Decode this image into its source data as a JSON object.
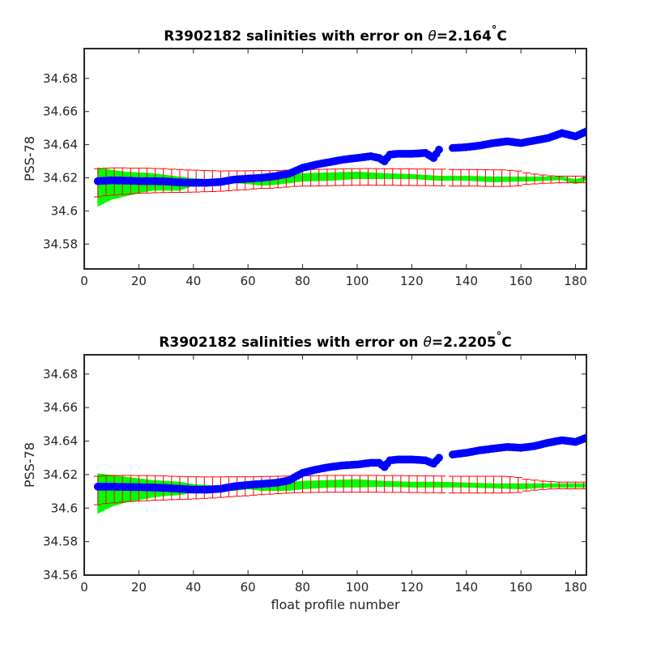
{
  "colors": {
    "measured": "#0000ff",
    "mapped_band": "#00ff00",
    "error_bars": "#ff0000",
    "axes": "#262626"
  },
  "chart_data": [
    {
      "type": "scatter",
      "title": "R3902182 salinities with error on θ=2.164°C",
      "title_parts": [
        "R3902182 salinities with error on ",
        "θ",
        "=2.164",
        "°",
        "C"
      ],
      "xlabel": "",
      "ylabel": "PSS-78",
      "xlim": [
        0,
        184
      ],
      "ylim": [
        34.565,
        34.698
      ],
      "xticks": [
        0,
        20,
        40,
        60,
        80,
        100,
        120,
        140,
        160,
        180
      ],
      "yticks": [
        34.58,
        34.6,
        34.62,
        34.64,
        34.66,
        34.68
      ],
      "ytick_labels": [
        "34.58",
        "34.6",
        "34.62",
        "34.64",
        "34.66",
        "34.68"
      ],
      "grid": false,
      "series": [
        {
          "kind": "measured-points",
          "x": [
            5,
            10,
            15,
            20,
            25,
            30,
            35,
            40,
            45,
            50,
            55,
            60,
            65,
            70,
            75,
            80,
            85,
            90,
            95,
            100,
            105,
            108,
            110,
            112,
            115,
            120,
            125,
            128,
            130,
            135,
            140,
            145,
            150,
            155,
            160,
            165,
            170,
            175,
            180,
            184
          ],
          "y": [
            34.618,
            34.6185,
            34.6183,
            34.618,
            34.618,
            34.6178,
            34.6172,
            34.617,
            34.617,
            34.6175,
            34.619,
            34.6195,
            34.62,
            34.621,
            34.6225,
            34.626,
            34.628,
            34.6295,
            34.631,
            34.632,
            34.633,
            34.632,
            34.63,
            34.634,
            34.6345,
            34.6345,
            34.635,
            34.632,
            34.637,
            34.638,
            34.6385,
            34.6395,
            34.641,
            34.642,
            34.641,
            34.6425,
            34.644,
            34.647,
            34.645,
            34.648
          ]
        },
        {
          "kind": "mapped-band",
          "x": [
            5,
            10,
            15,
            20,
            25,
            30,
            35,
            40,
            45,
            50,
            55,
            60,
            65,
            70,
            75,
            80,
            90,
            100,
            110,
            120,
            130,
            140,
            150,
            160,
            170,
            175,
            180,
            184
          ],
          "lower": [
            34.603,
            34.607,
            34.609,
            34.611,
            34.6125,
            34.6125,
            34.6125,
            34.6155,
            34.616,
            34.6165,
            34.617,
            34.6165,
            34.6155,
            34.616,
            34.617,
            34.618,
            34.6185,
            34.6195,
            34.6195,
            34.6195,
            34.6185,
            34.6185,
            34.6175,
            34.618,
            34.6185,
            34.619,
            34.6165,
            34.6185
          ],
          "upper": [
            34.626,
            34.6245,
            34.6235,
            34.623,
            34.6225,
            34.6215,
            34.6205,
            34.6195,
            34.619,
            34.6185,
            34.6195,
            34.62,
            34.621,
            34.6215,
            34.622,
            34.6225,
            34.623,
            34.6235,
            34.6225,
            34.622,
            34.621,
            34.621,
            34.6205,
            34.6205,
            34.6205,
            34.6205,
            34.619,
            34.6205
          ]
        },
        {
          "kind": "error-bars",
          "x": [
            5,
            8,
            11,
            14,
            17,
            20,
            23,
            26,
            29,
            32,
            35,
            38,
            41,
            44,
            47,
            50,
            53,
            56,
            59,
            62,
            65,
            68,
            71,
            74,
            77,
            80,
            83,
            86,
            89,
            92,
            95,
            98,
            101,
            104,
            107,
            110,
            113,
            116,
            119,
            122,
            125,
            128,
            131,
            135,
            138,
            141,
            144,
            147,
            150,
            153,
            156,
            159,
            162,
            165,
            168,
            171,
            174,
            177,
            180,
            183
          ],
          "y": [
            34.617,
            34.6175,
            34.6178,
            34.618,
            34.618,
            34.6182,
            34.6183,
            34.6183,
            34.6183,
            34.6182,
            34.6181,
            34.618,
            34.618,
            34.618,
            34.618,
            34.618,
            34.6182,
            34.6184,
            34.6185,
            34.6188,
            34.619,
            34.619,
            34.6192,
            34.6195,
            34.6198,
            34.62,
            34.62,
            34.6201,
            34.6202,
            34.6203,
            34.6204,
            34.6205,
            34.6205,
            34.6206,
            34.6205,
            34.6205,
            34.6205,
            34.6204,
            34.6204,
            34.6203,
            34.6203,
            34.6202,
            34.6202,
            34.62,
            34.62,
            34.62,
            34.62,
            34.6199,
            34.6198,
            34.6198,
            34.6197,
            34.6196,
            34.6195,
            34.6193,
            34.6192,
            34.619,
            34.619,
            34.619,
            34.619,
            34.619
          ],
          "err": [
            0.0085,
            0.0083,
            0.0082,
            0.008,
            0.0078,
            0.0076,
            0.0075,
            0.0073,
            0.0072,
            0.007,
            0.0069,
            0.0067,
            0.0066,
            0.0064,
            0.0063,
            0.0061,
            0.006,
            0.0058,
            0.0057,
            0.0055,
            0.0054,
            0.0053,
            0.0052,
            0.0051,
            0.005,
            0.005,
            0.005,
            0.005,
            0.005,
            0.005,
            0.005,
            0.005,
            0.005,
            0.005,
            0.005,
            0.005,
            0.005,
            0.005,
            0.005,
            0.005,
            0.005,
            0.005,
            0.005,
            0.005,
            0.005,
            0.005,
            0.005,
            0.005,
            0.005,
            0.005,
            0.0048,
            0.0045,
            0.0035,
            0.003,
            0.0025,
            0.0022,
            0.002,
            0.002,
            0.002,
            0.002
          ]
        }
      ]
    },
    {
      "type": "scatter",
      "title": "R3902182 salinities with error on θ=2.2205°C",
      "title_parts": [
        "R3902182 salinities with error on ",
        "θ",
        "=2.2205",
        "°",
        "C"
      ],
      "xlabel": "float profile number",
      "ylabel": "PSS-78",
      "xlim": [
        0,
        184
      ],
      "ylim": [
        34.56,
        34.6915
      ],
      "xticks": [
        0,
        20,
        40,
        60,
        80,
        100,
        120,
        140,
        160,
        180
      ],
      "yticks": [
        34.56,
        34.58,
        34.6,
        34.62,
        34.64,
        34.66,
        34.68
      ],
      "ytick_labels": [
        "34.56",
        "34.58",
        "34.6",
        "34.62",
        "34.64",
        "34.66",
        "34.68"
      ],
      "grid": false,
      "series": [
        {
          "kind": "measured-points",
          "x": [
            5,
            10,
            15,
            20,
            25,
            30,
            35,
            40,
            45,
            50,
            55,
            60,
            65,
            70,
            75,
            80,
            85,
            90,
            95,
            100,
            105,
            108,
            110,
            112,
            115,
            120,
            125,
            128,
            130,
            135,
            140,
            145,
            150,
            155,
            160,
            165,
            170,
            175,
            180,
            184
          ],
          "y": [
            34.6128,
            34.6128,
            34.6126,
            34.6125,
            34.6123,
            34.612,
            34.6115,
            34.611,
            34.611,
            34.6115,
            34.613,
            34.6138,
            34.6145,
            34.615,
            34.6165,
            34.621,
            34.623,
            34.6245,
            34.6255,
            34.626,
            34.627,
            34.627,
            34.6245,
            34.6285,
            34.629,
            34.629,
            34.6285,
            34.6265,
            34.63,
            34.632,
            34.633,
            34.6345,
            34.6355,
            34.6365,
            34.636,
            34.637,
            34.639,
            34.6405,
            34.6395,
            34.642
          ]
        },
        {
          "kind": "mapped-band",
          "x": [
            5,
            10,
            15,
            20,
            25,
            30,
            35,
            40,
            45,
            50,
            55,
            60,
            65,
            70,
            75,
            80,
            90,
            100,
            110,
            120,
            130,
            140,
            150,
            160,
            170,
            175,
            180,
            184
          ],
          "lower": [
            34.597,
            34.601,
            34.6035,
            34.605,
            34.6065,
            34.6075,
            34.608,
            34.6095,
            34.6105,
            34.6105,
            34.6105,
            34.6115,
            34.6105,
            34.6105,
            34.6105,
            34.6115,
            34.6125,
            34.6125,
            34.613,
            34.6125,
            34.6125,
            34.6125,
            34.612,
            34.6115,
            34.6125,
            34.6125,
            34.6125,
            34.6125
          ],
          "upper": [
            34.6205,
            34.6195,
            34.6185,
            34.6175,
            34.6165,
            34.616,
            34.6155,
            34.614,
            34.6135,
            34.613,
            34.6135,
            34.614,
            34.6145,
            34.615,
            34.6155,
            34.616,
            34.6165,
            34.617,
            34.616,
            34.6155,
            34.6155,
            34.615,
            34.6145,
            34.6145,
            34.6145,
            34.6145,
            34.6145,
            34.6145
          ]
        },
        {
          "kind": "error-bars",
          "x": [
            5,
            8,
            11,
            14,
            17,
            20,
            23,
            26,
            29,
            32,
            35,
            38,
            41,
            44,
            47,
            50,
            53,
            56,
            59,
            62,
            65,
            68,
            71,
            74,
            77,
            80,
            83,
            86,
            89,
            92,
            95,
            98,
            101,
            104,
            107,
            110,
            113,
            116,
            119,
            122,
            125,
            128,
            131,
            135,
            138,
            141,
            144,
            147,
            150,
            153,
            156,
            159,
            162,
            165,
            168,
            171,
            174,
            177,
            180,
            183
          ],
          "y": [
            34.6105,
            34.611,
            34.6113,
            34.6115,
            34.6117,
            34.6118,
            34.6119,
            34.612,
            34.612,
            34.612,
            34.612,
            34.612,
            34.6121,
            34.6122,
            34.6123,
            34.6125,
            34.6127,
            34.6129,
            34.613,
            34.6132,
            34.6134,
            34.6136,
            34.6138,
            34.614,
            34.6141,
            34.6142,
            34.6143,
            34.6144,
            34.6145,
            34.6145,
            34.6145,
            34.6145,
            34.6145,
            34.6145,
            34.6145,
            34.6144,
            34.6144,
            34.6144,
            34.6143,
            34.6143,
            34.6142,
            34.6142,
            34.6141,
            34.614,
            34.614,
            34.614,
            34.614,
            34.614,
            34.614,
            34.614,
            34.6139,
            34.6138,
            34.6137,
            34.6137,
            34.6136,
            34.6136,
            34.6135,
            34.6135,
            34.6135,
            34.6135
          ],
          "err": [
            0.0085,
            0.0083,
            0.0082,
            0.008,
            0.0078,
            0.0076,
            0.0075,
            0.0073,
            0.0072,
            0.007,
            0.0069,
            0.0067,
            0.0066,
            0.0064,
            0.0063,
            0.0061,
            0.006,
            0.0058,
            0.0057,
            0.0055,
            0.0054,
            0.0053,
            0.0052,
            0.0051,
            0.005,
            0.005,
            0.005,
            0.005,
            0.005,
            0.005,
            0.005,
            0.005,
            0.005,
            0.005,
            0.005,
            0.005,
            0.005,
            0.005,
            0.005,
            0.005,
            0.005,
            0.005,
            0.005,
            0.005,
            0.005,
            0.005,
            0.005,
            0.005,
            0.005,
            0.005,
            0.0048,
            0.0045,
            0.0035,
            0.003,
            0.0025,
            0.0022,
            0.002,
            0.002,
            0.002,
            0.002
          ]
        }
      ]
    }
  ]
}
